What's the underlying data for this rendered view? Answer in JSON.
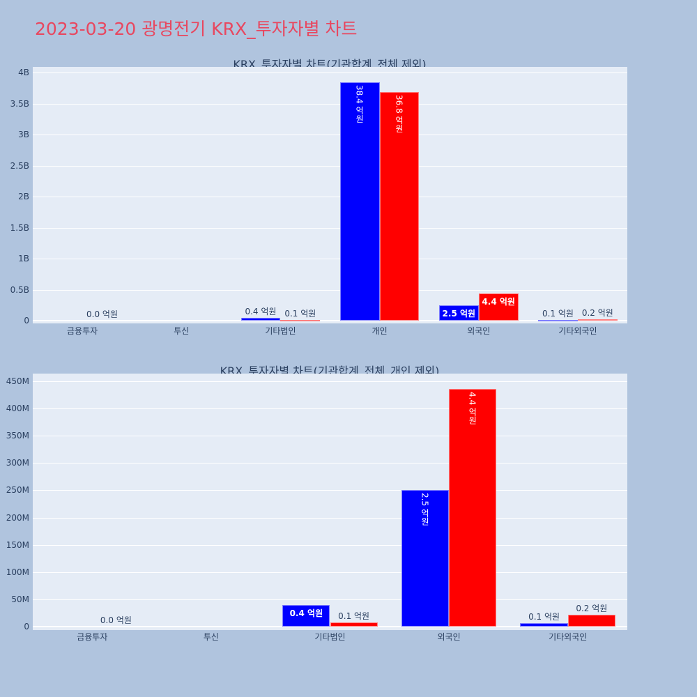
{
  "title": "2023-03-20 광명전기 KRX_투자자별 차트",
  "colors": {
    "buy": "#0000ff",
    "sell": "#ff0000",
    "title": "#e8475f",
    "background": "#b0c4de",
    "plot_bg": "#e5ecf6"
  },
  "chart_data": [
    {
      "type": "bar",
      "title": "KRX_투자자별 차트(기관합계_전체 제외)",
      "categories": [
        "금융투자",
        "투신",
        "기타법인",
        "개인",
        "외국인",
        "기타외국인"
      ],
      "yticks": [
        "0",
        "0.5B",
        "1B",
        "1.5B",
        "2B",
        "2.5B",
        "3B",
        "3.5B",
        "4B"
      ],
      "ylim": [
        0,
        4000000000
      ],
      "series": [
        {
          "name": "series_blue",
          "color": "#0000ff",
          "values": [
            0,
            0,
            40000000,
            3840000000,
            250000000,
            10000000
          ],
          "labels": [
            "",
            "",
            "0.4 억원",
            "38.4 억원",
            "2.5 억원",
            "0.1 억원"
          ]
        },
        {
          "name": "series_red",
          "color": "#ff0000",
          "values": [
            0,
            0,
            10000000,
            3680000000,
            440000000,
            20000000
          ],
          "labels": [
            "0.0 억원",
            "",
            "0.1 억원",
            "36.8 억원",
            "4.4 억원",
            "0.2 억원"
          ]
        }
      ],
      "grid": true
    },
    {
      "type": "bar",
      "title": "KRX_투자자별 차트(기관합계_전체_개인 제외)",
      "categories": [
        "금융투자",
        "투신",
        "기타법인",
        "외국인",
        "기타외국인"
      ],
      "yticks": [
        "0",
        "50M",
        "100M",
        "150M",
        "200M",
        "250M",
        "300M",
        "350M",
        "400M",
        "450M"
      ],
      "ylim": [
        0,
        450000000
      ],
      "series": [
        {
          "name": "series_blue",
          "color": "#0000ff",
          "values": [
            0,
            0,
            40000000,
            250000000,
            7000000
          ],
          "labels": [
            "",
            "",
            "0.4 억원",
            "2.5 억원",
            "0.1 억원"
          ]
        },
        {
          "name": "series_red",
          "color": "#ff0000",
          "values": [
            0,
            0,
            8000000,
            436000000,
            22000000
          ],
          "labels": [
            "0.0 억원",
            "",
            "0.1 억원",
            "4.4 억원",
            "0.2 억원"
          ]
        }
      ],
      "grid": true
    }
  ]
}
